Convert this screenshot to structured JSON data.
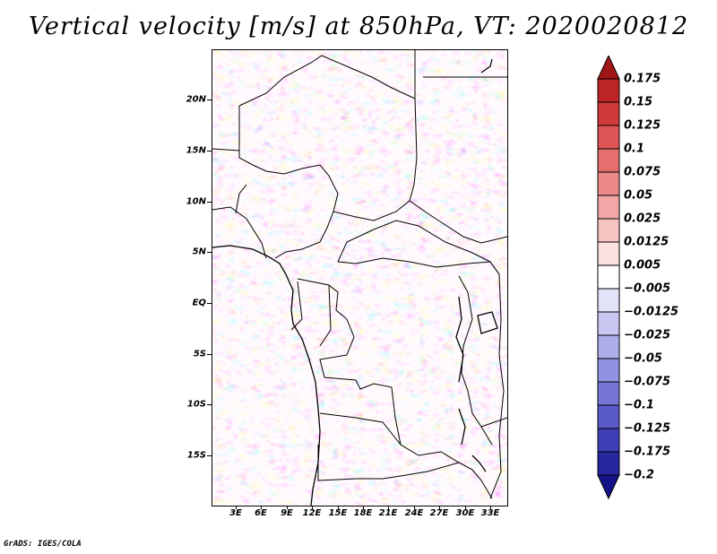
{
  "title": "Vertical velocity [m/s] at 850hPa, VT: 2020020812",
  "map": {
    "lat_labels": [
      "20N",
      "15N",
      "10N",
      "5N",
      "EQ",
      "5S",
      "10S",
      "15S"
    ],
    "lon_labels": [
      "3E",
      "6E",
      "9E",
      "12E",
      "15E",
      "18E",
      "21E",
      "24E",
      "27E",
      "30E",
      "33E"
    ]
  },
  "colorbar": {
    "labels": [
      "0.175",
      "0.15",
      "0.125",
      "0.1",
      "0.075",
      "0.05",
      "0.025",
      "0.0125",
      "0.005",
      "−0.005",
      "−0.0125",
      "−0.025",
      "−0.05",
      "−0.075",
      "−0.1",
      "−0.125",
      "−0.175",
      "−0.2"
    ],
    "colors": [
      "#a11616",
      "#bd2525",
      "#cf3b3b",
      "#dc5454",
      "#e56e6e",
      "#ec8989",
      "#f2a6a6",
      "#f7c4c4",
      "#fbe0e0",
      "#ffffff",
      "#e2e2f8",
      "#c8c8f2",
      "#aeaeec",
      "#9292e2",
      "#7676d6",
      "#5a5ac8",
      "#3e3eb6",
      "#2626a0",
      "#14148a"
    ]
  },
  "credit": "GrADS: IGES/COLA"
}
